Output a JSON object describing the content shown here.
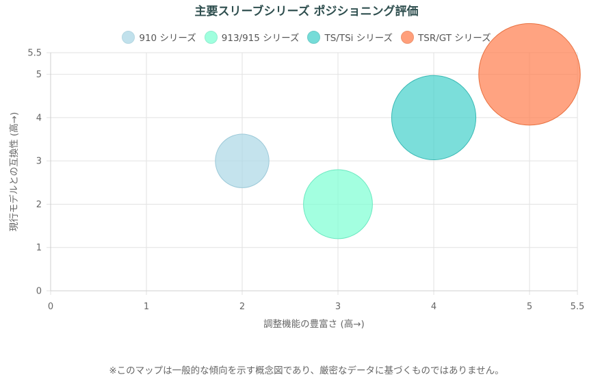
{
  "chart_data": {
    "type": "bubble",
    "title": "主要スリーブシリーズ ポジショニング評価",
    "xlabel": "調整機能の豊富さ (高→)",
    "ylabel": "現行モデルとの互換性 (高→)",
    "xlim": [
      0,
      5.5
    ],
    "ylim": [
      0,
      5.5
    ],
    "xticks": [
      "0",
      "1",
      "2",
      "3",
      "4",
      "5",
      "5.5"
    ],
    "yticks": [
      "0",
      "1",
      "2",
      "3",
      "4",
      "5",
      "5.5"
    ],
    "grid": true,
    "legend_position": "top",
    "series": [
      {
        "name": "910 シリーズ",
        "x": 2,
        "y": 3,
        "r": 0.28,
        "fill": "#add8e6",
        "stroke": "#9cc9d8"
      },
      {
        "name": "913/915 シリーズ",
        "x": 3,
        "y": 2,
        "r": 0.36,
        "fill": "#7fffd4",
        "stroke": "#6be8c0"
      },
      {
        "name": "TS/TSi シリーズ",
        "x": 4,
        "y": 4,
        "r": 0.44,
        "fill": "#48d1cc",
        "stroke": "#3ab9b4"
      },
      {
        "name": "TSR/GT シリーズ",
        "x": 5,
        "y": 5,
        "r": 0.53,
        "fill": "#ff7f50",
        "stroke": "#e8703f"
      }
    ]
  },
  "footnote": "※このマップは一般的な傾向を示す概念図であり、厳密なデータに基づくものではありません。"
}
